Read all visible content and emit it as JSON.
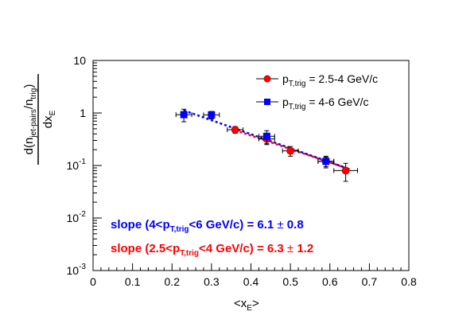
{
  "chart_data": {
    "type": "scatter",
    "title": "",
    "xlabel": "<x_E>",
    "ylabel": "d(n_jet-pairs/n_trig)/dx_E",
    "xlim": [
      0,
      0.8
    ],
    "ylim": [
      0.001,
      10
    ],
    "yscale": "log",
    "x_ticks": [
      "0",
      "0.1",
      "0.2",
      "0.3",
      "0.4",
      "0.5",
      "0.6",
      "0.7",
      "0.8"
    ],
    "y_ticks": [
      {
        "base": "10",
        "exp": "-3"
      },
      {
        "base": "10",
        "exp": "-2"
      },
      {
        "base": "10",
        "exp": "-1"
      },
      {
        "base": "1",
        "exp": ""
      },
      {
        "base": "10",
        "exp": ""
      }
    ],
    "legend_position": "top-right",
    "series": [
      {
        "name": "p_T,trig = 2.5-4 GeV/c",
        "legend_main": "p",
        "legend_sub": "T,trig",
        "legend_rest": " = 2.5-4 GeV/c",
        "marker": "circle",
        "color": "#ff0000",
        "x": [
          0.36,
          0.44,
          0.5,
          0.59,
          0.64
        ],
        "y": [
          0.48,
          0.32,
          0.19,
          0.12,
          0.08
        ],
        "xerr": [
          0.02,
          0.02,
          0.02,
          0.02,
          0.03
        ],
        "yerr_low": [
          0.07,
          0.07,
          0.04,
          0.025,
          0.03
        ],
        "yerr_high": [
          0.07,
          0.07,
          0.04,
          0.025,
          0.03
        ],
        "fit": {
          "x": [
            0.36,
            0.65
          ],
          "y": [
            0.47,
            0.085
          ]
        }
      },
      {
        "name": "p_T,trig = 4-6 GeV/c",
        "legend_main": "p",
        "legend_sub": "T,trig",
        "legend_rest": " = 4-6 GeV/c",
        "marker": "square",
        "color": "#0000ff",
        "x": [
          0.23,
          0.3,
          0.44,
          0.59
        ],
        "y": [
          0.93,
          0.92,
          0.36,
          0.12
        ],
        "xerr": [
          0.02,
          0.02,
          0.02,
          0.02
        ],
        "yerr_low": [
          0.25,
          0.15,
          0.1,
          0.03
        ],
        "yerr_high": [
          0.25,
          0.15,
          0.1,
          0.03
        ],
        "fit": {
          "x": [
            0.23,
            0.65
          ],
          "y": [
            1.12,
            0.085
          ]
        }
      }
    ],
    "annotations": [
      {
        "color": "#0000ff",
        "parts": [
          "slope (4<p",
          "T,trig",
          "<6 GeV/c) = 6.1 ",
          "±",
          " 0.8"
        ]
      },
      {
        "color": "#ff0000",
        "parts": [
          "slope (2.5<p",
          "T,trig",
          "<4 GeV/c) = 6.3 ",
          "±",
          " 1.2"
        ]
      }
    ],
    "ylabel_parts": {
      "numer_pre": "d(n",
      "numer_sub1": "jet-pairs",
      "numer_mid": "/n",
      "numer_sub2": "trig",
      "numer_post": ")",
      "denom_pre": "dx",
      "denom_sub": "E"
    },
    "xlabel_parts": {
      "pre": "<x",
      "sub": "E",
      "post": ">"
    }
  }
}
